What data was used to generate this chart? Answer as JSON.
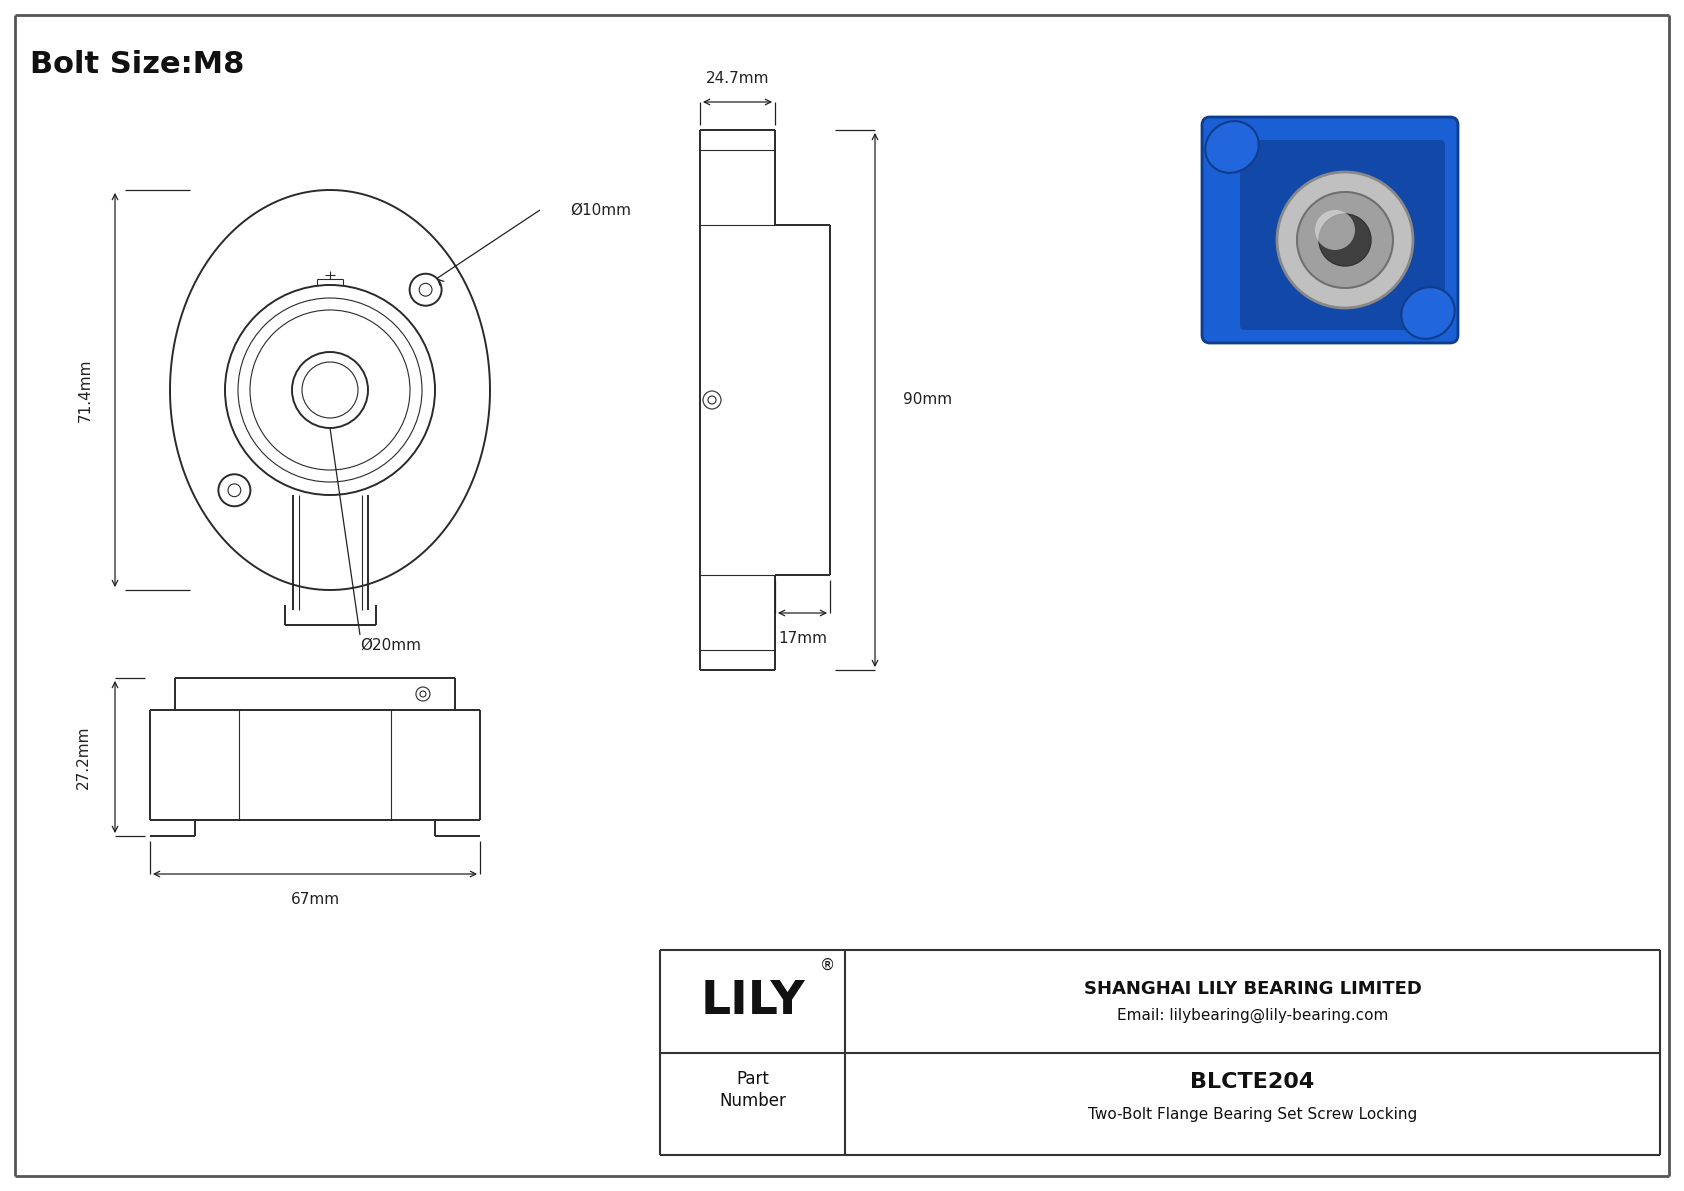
{
  "title": "Bolt Size:M8",
  "background_color": "#ffffff",
  "line_color": "#2a2a2a",
  "dim_color": "#222222",
  "company_name": "SHANGHAI LILY BEARING LIMITED",
  "company_email": "Email: lilybearing@lily-bearing.com",
  "part_number": "BLCTE204",
  "part_description": "Two-Bolt Flange Bearing Set Screw Locking",
  "part_label_line1": "Part",
  "part_label_line2": "Number",
  "lily_text": "LILY",
  "dims": {
    "bolt_hole_dia": "Ø10mm",
    "bearing_hole_dia": "Ø20mm",
    "height_71": "71.4mm",
    "width_67": "67mm",
    "height_27": "27.2mm",
    "width_24": "24.7mm",
    "height_90": "90mm",
    "width_17": "17mm"
  }
}
